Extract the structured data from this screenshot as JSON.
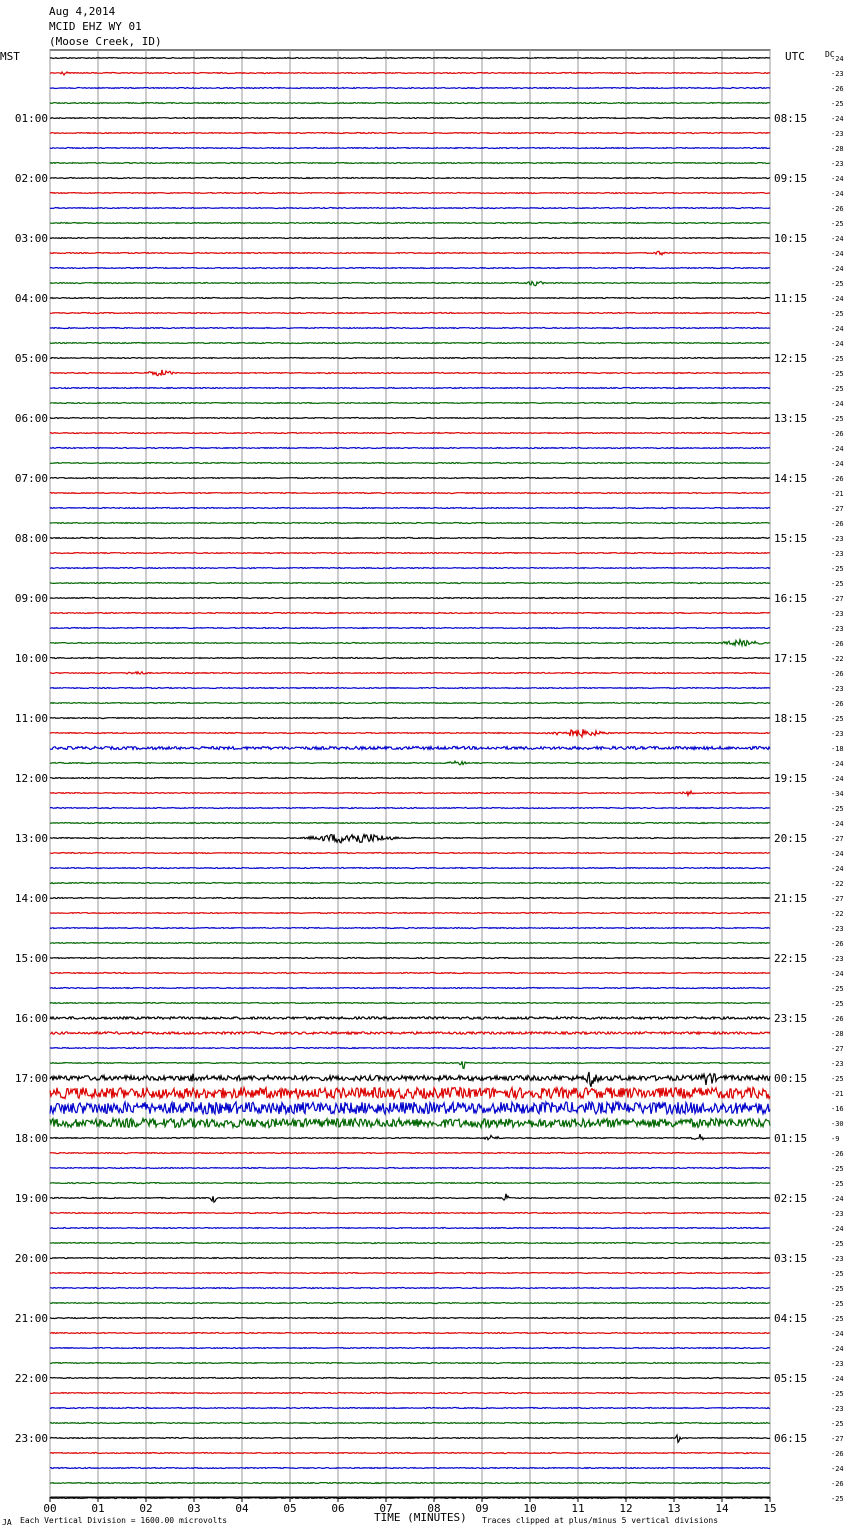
{
  "header": {
    "date": "Aug 4,2014",
    "station": "MCID EHZ WY 01",
    "location": "(Moose Creek, ID)"
  },
  "left_timezone": "MST",
  "right_timezone": "UTC",
  "dc_label": "DC",
  "footer": {
    "scale_note": "Each Vertical Division = 1600.00 microvolts",
    "axis_title": "TIME (MINUTES)",
    "clip_note": "Traces clipped at plus/minus 5 vertical divisions",
    "corner_mark": "JA"
  },
  "colors": {
    "black": "#000000",
    "red": "#dd0000",
    "blue": "#0000cc",
    "green": "#006600",
    "grid": "#999999"
  },
  "chart_data": {
    "type": "line",
    "title": "",
    "xlabel": "TIME (MINUTES)",
    "xlim": [
      0,
      15
    ],
    "x_ticks": [
      "00",
      "01",
      "02",
      "03",
      "04",
      "05",
      "06",
      "07",
      "08",
      "09",
      "10",
      "11",
      "12",
      "13",
      "14",
      "15"
    ],
    "hours_mst": [
      "01:00",
      "02:00",
      "03:00",
      "04:00",
      "05:00",
      "06:00",
      "07:00",
      "08:00",
      "09:00",
      "10:00",
      "11:00",
      "12:00",
      "13:00",
      "14:00",
      "15:00",
      "16:00",
      "17:00",
      "18:00",
      "19:00",
      "20:00",
      "21:00",
      "22:00",
      "23:00"
    ],
    "hours_utc": [
      "08:15",
      "09:15",
      "10:15",
      "11:15",
      "12:15",
      "13:15",
      "14:15",
      "15:15",
      "16:15",
      "17:15",
      "18:15",
      "19:15",
      "20:15",
      "21:15",
      "22:15",
      "23:15",
      "00:15",
      "01:15",
      "02:15",
      "03:15",
      "04:15",
      "05:15",
      "06:15"
    ],
    "trace_colors": [
      "black",
      "red",
      "blue",
      "green"
    ],
    "dc_offsets": [
      "-24",
      "-23",
      "-26",
      "-25",
      "-24",
      "-23",
      "-28",
      "-23",
      "-24",
      "-24",
      "-26",
      "-25",
      "-24",
      "-24",
      "-24",
      "-25",
      "-24",
      "-25",
      "-24",
      "-24",
      "-25",
      "-25",
      "-25",
      "-24",
      "-25",
      "-26",
      "-24",
      "-24",
      "-26",
      "-21",
      "-27",
      "-26",
      "-23",
      "-23",
      "-25",
      "-25",
      "-27",
      "-23",
      "-23",
      "-26",
      "-22",
      "-26",
      "-23",
      "-26",
      "-25",
      "-23",
      "-18",
      "-24",
      "-24",
      "-34",
      "-25",
      "-24",
      "-27",
      "-24",
      "-24",
      "-22",
      "-27",
      "-22",
      "-23",
      "-26",
      "-23",
      "-24",
      "-25",
      "-25",
      "-26",
      "-28",
      "-27",
      "-23",
      "-25",
      "-21",
      "-16",
      "-30",
      "-9",
      "-26",
      "-25",
      "-25",
      "-24",
      "-23",
      "-24",
      "-25",
      "-23",
      "-25",
      "-25",
      "-25",
      "-25",
      "-24",
      "-24",
      "-23",
      "-24",
      "-25",
      "-23",
      "-25",
      "-27",
      "-26",
      "-24",
      "-26",
      "-25"
    ],
    "events": [
      {
        "trace": 1,
        "t": 0.3,
        "amp": 2,
        "dur": 0.1
      },
      {
        "trace": 13,
        "t": 12.7,
        "amp": 3,
        "dur": 0.15
      },
      {
        "trace": 15,
        "t": 10.1,
        "amp": 3,
        "dur": 0.3
      },
      {
        "trace": 21,
        "t": 2.3,
        "amp": 3,
        "dur": 0.6
      },
      {
        "trace": 39,
        "t": 14.4,
        "amp": 3,
        "dur": 0.9
      },
      {
        "trace": 41,
        "t": 1.8,
        "amp": 2,
        "dur": 0.4
      },
      {
        "trace": 45,
        "t": 11.0,
        "amp": 4,
        "dur": 1.3
      },
      {
        "trace": 47,
        "t": 8.5,
        "amp": 2,
        "dur": 0.4
      },
      {
        "trace": 49,
        "t": 13.3,
        "amp": 2,
        "dur": 0.3
      },
      {
        "trace": 52,
        "t": 6.3,
        "amp": 6,
        "dur": 2.0
      },
      {
        "trace": 67,
        "t": 8.6,
        "amp": 8,
        "dur": 0.05
      },
      {
        "trace": 68,
        "t": 3.0,
        "amp": 4,
        "dur": 0.1
      },
      {
        "trace": 68,
        "t": 11.3,
        "amp": 8,
        "dur": 0.2
      },
      {
        "trace": 68,
        "t": 13.7,
        "amp": 6,
        "dur": 0.3
      },
      {
        "trace": 72,
        "t": 9.2,
        "amp": 3,
        "dur": 0.3
      },
      {
        "trace": 72,
        "t": 13.5,
        "amp": 5,
        "dur": 0.2
      },
      {
        "trace": 76,
        "t": 3.4,
        "amp": 6,
        "dur": 0.05
      },
      {
        "trace": 76,
        "t": 9.5,
        "amp": 4,
        "dur": 0.05
      },
      {
        "trace": 92,
        "t": 13.1,
        "amp": 5,
        "dur": 0.05
      }
    ],
    "noisy_traces": [
      {
        "trace": 68,
        "noise": 2.5
      },
      {
        "trace": 69,
        "noise": 5.5
      },
      {
        "trace": 70,
        "noise": 6.0
      },
      {
        "trace": 71,
        "noise": 4.5
      },
      {
        "trace": 46,
        "noise": 1.5
      },
      {
        "trace": 64,
        "noise": 1.2
      },
      {
        "trace": 65,
        "noise": 1.2
      }
    ]
  }
}
